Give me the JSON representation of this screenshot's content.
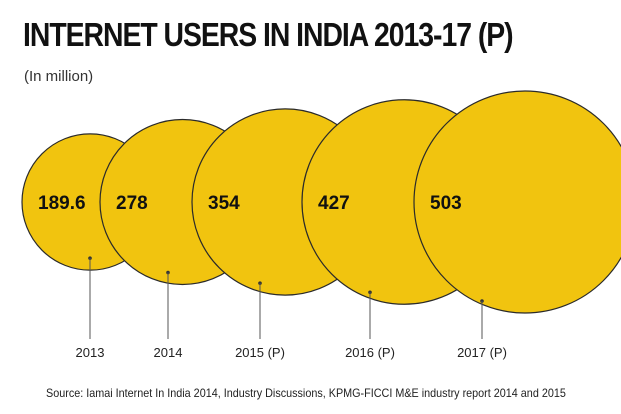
{
  "title": "INTERNET USERS IN INDIA 2013-17 (P)",
  "unit_note": "(In million)",
  "source": "Source: Iamai Internet In India 2014, Industry Discussions, KPMG-FICCI M&E industry report 2014 and 2015",
  "colors": {
    "bubble": "#f1c40f",
    "outline": "#2a2a2a",
    "text": "#111111"
  },
  "chart_data": {
    "type": "bubble",
    "title": "INTERNET USERS IN INDIA 2013-17 (P)",
    "unit": "million",
    "categories": [
      "2013",
      "2014",
      "2015 (P)",
      "2016 (P)",
      "2017 (P)"
    ],
    "values": [
      189.6,
      278,
      354,
      427,
      503
    ],
    "value_labels": [
      "189.6",
      "278",
      "354",
      "427",
      "503"
    ]
  }
}
